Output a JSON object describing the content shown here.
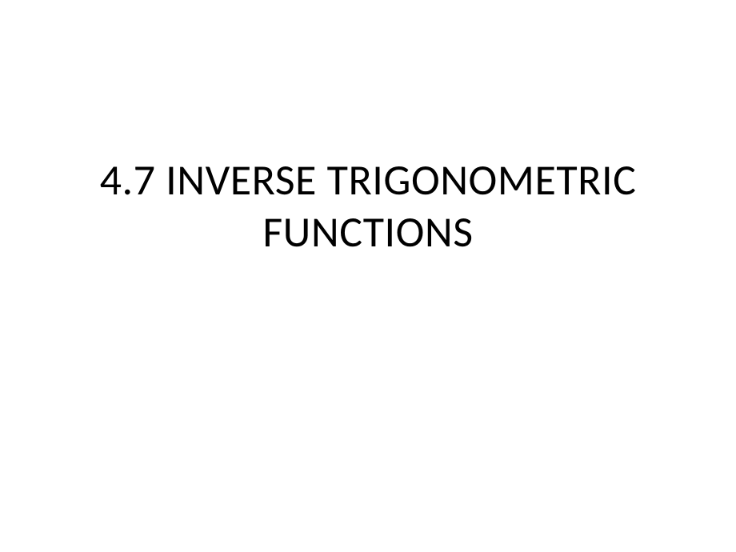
{
  "slide": {
    "title_line1": "4.7 INVERSE TRIGONOMETRIC",
    "title_line2": "FUNCTIONS",
    "background_color": "#ffffff",
    "text_color": "#000000",
    "title_fontsize": 54,
    "font_family": "Calibri"
  }
}
